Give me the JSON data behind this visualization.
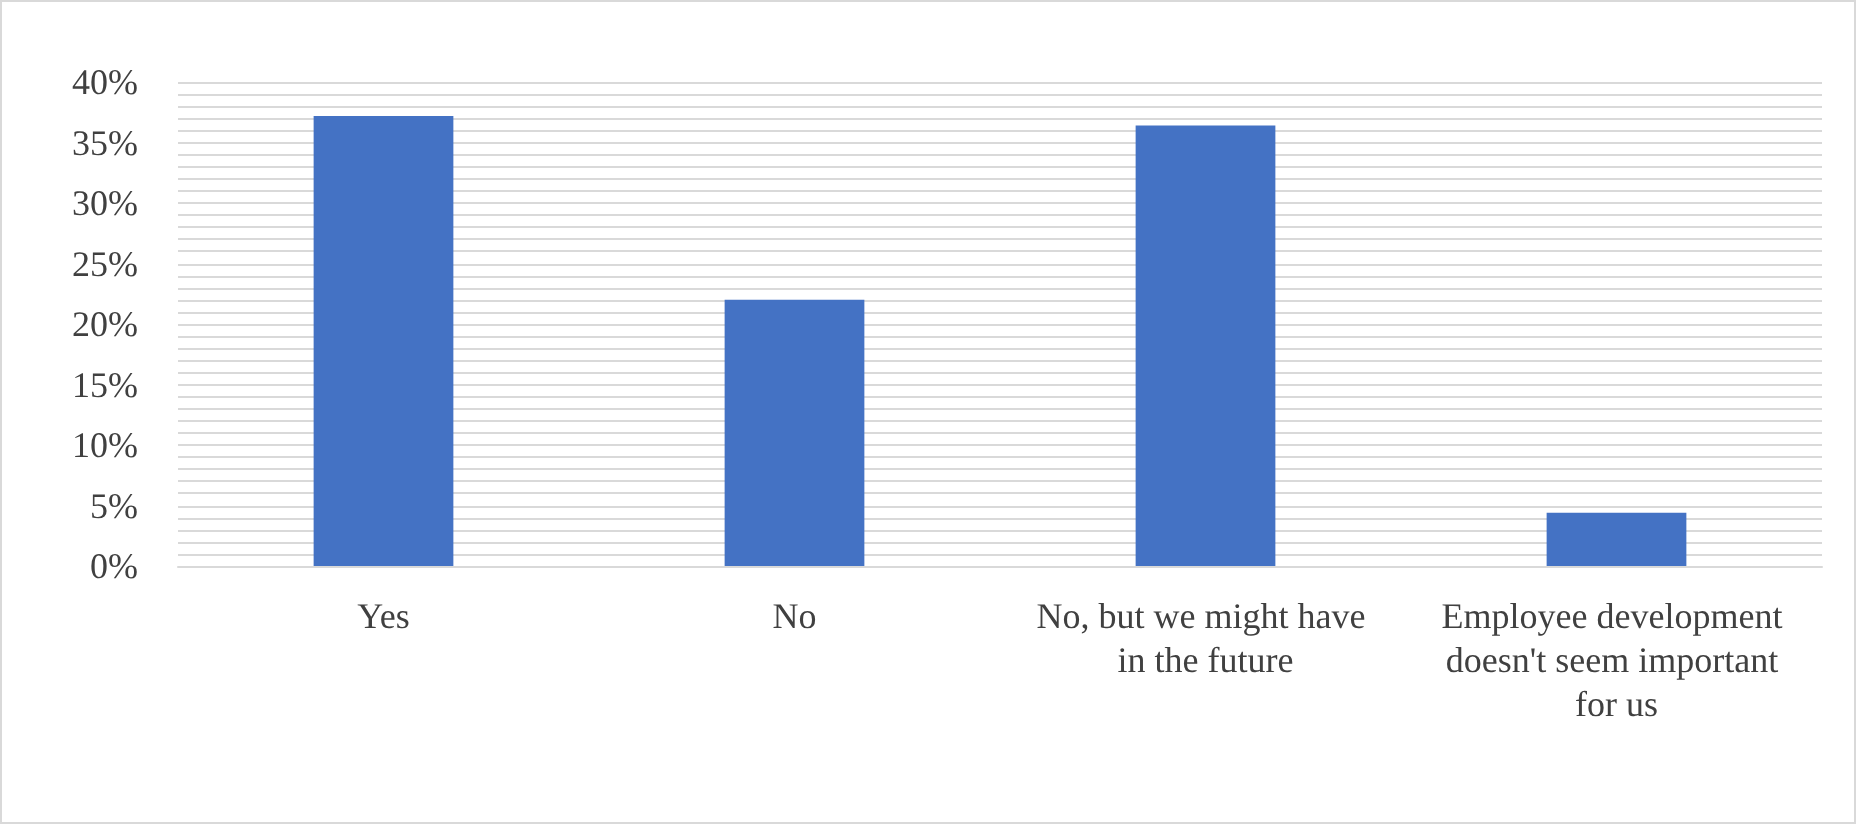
{
  "chart_data": {
    "type": "bar",
    "categories": [
      "Yes",
      "No",
      "No, but we might have in the future",
      "Employee development doesn't seem important for us"
    ],
    "values": [
      37.2,
      22,
      36.4,
      4.4
    ],
    "color": "#4472c4",
    "ylim": [
      0,
      40
    ],
    "yticks": [
      {
        "value": 0,
        "label": "0%"
      },
      {
        "value": 1,
        "label": null
      },
      {
        "value": 2,
        "label": null
      },
      {
        "value": 3,
        "label": null
      },
      {
        "value": 4,
        "label": null
      },
      {
        "value": 5,
        "label": "5%"
      },
      {
        "value": 6,
        "label": null
      },
      {
        "value": 7,
        "label": null
      },
      {
        "value": 8,
        "label": null
      },
      {
        "value": 9,
        "label": null
      },
      {
        "value": 10,
        "label": "10%"
      },
      {
        "value": 11,
        "label": null
      },
      {
        "value": 12,
        "label": null
      },
      {
        "value": 13,
        "label": null
      },
      {
        "value": 14,
        "label": null
      },
      {
        "value": 15,
        "label": "15%"
      },
      {
        "value": 16,
        "label": null
      },
      {
        "value": 17,
        "label": null
      },
      {
        "value": 18,
        "label": null
      },
      {
        "value": 19,
        "label": null
      },
      {
        "value": 20,
        "label": "20%"
      },
      {
        "value": 21,
        "label": null
      },
      {
        "value": 22,
        "label": null
      },
      {
        "value": 23,
        "label": null
      },
      {
        "value": 24,
        "label": null
      },
      {
        "value": 25,
        "label": "25%"
      },
      {
        "value": 26,
        "label": null
      },
      {
        "value": 27,
        "label": null
      },
      {
        "value": 28,
        "label": null
      },
      {
        "value": 29,
        "label": null
      },
      {
        "value": 30,
        "label": "30%"
      },
      {
        "value": 31,
        "label": null
      },
      {
        "value": 32,
        "label": null
      },
      {
        "value": 33,
        "label": null
      },
      {
        "value": 34,
        "label": null
      },
      {
        "value": 35,
        "label": "35%"
      },
      {
        "value": 36,
        "label": null
      },
      {
        "value": 37,
        "label": null
      },
      {
        "value": 38,
        "label": null
      },
      {
        "value": 39,
        "label": null
      },
      {
        "value": 40,
        "label": "40%"
      }
    ],
    "grid": true
  }
}
